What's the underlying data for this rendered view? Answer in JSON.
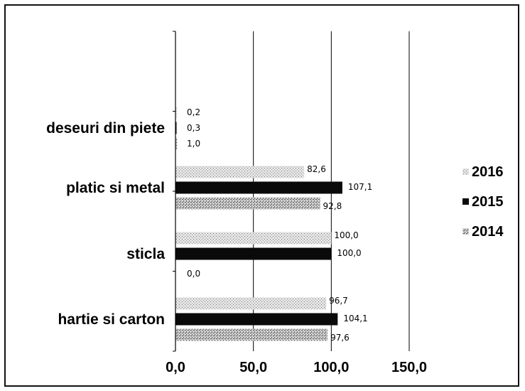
{
  "chart_data": {
    "type": "bar",
    "orientation": "horizontal",
    "categories": [
      "hartie si carton",
      "sticla",
      "platic si metal",
      "deseuri din piete"
    ],
    "series": [
      {
        "name": "2016",
        "values": [
          96.7,
          100.0,
          82.6,
          0.2
        ],
        "labels": [
          "96,7",
          "100,0",
          "82,6",
          "0,2"
        ],
        "pattern": "light-dotted"
      },
      {
        "name": "2015",
        "values": [
          104.1,
          100.0,
          107.1,
          0.3
        ],
        "labels": [
          "104,1",
          "100,0",
          "107,1",
          "0,3"
        ],
        "pattern": "solid-black"
      },
      {
        "name": "2014",
        "values": [
          97.6,
          0.0,
          92.8,
          1.0
        ],
        "labels": [
          "97,6",
          "0,0",
          "92,8",
          "1,0"
        ],
        "pattern": "dark-dotted"
      }
    ],
    "xticks": [
      "0,0",
      "50,0",
      "100,0",
      "150,0"
    ],
    "xlim": [
      0,
      150
    ],
    "grid": "vertical",
    "legend": "right",
    "colors": {
      "bar2015": "#0a0a0a",
      "pattern_light": "#d4d4d4",
      "pattern_dark": "#a8a8a8",
      "grid": "#000000"
    }
  }
}
